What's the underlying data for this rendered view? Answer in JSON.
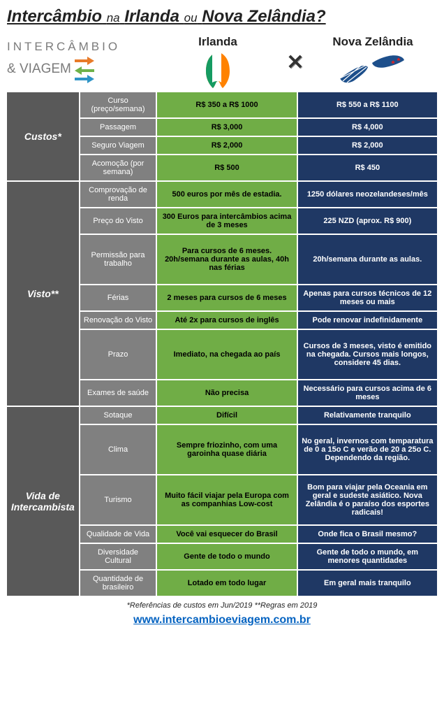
{
  "colors": {
    "category": "#595959",
    "subcat": "#808080",
    "ireland": "#70ad46",
    "newzealand": "#1f3864",
    "border": "#ffffff",
    "link": "#0563c1"
  },
  "title": {
    "pre": "Intercâmbio",
    "mid": "na",
    "c1": "Irlanda",
    "or": "ou",
    "c2": "Nova Zelândia?"
  },
  "logo": {
    "top": "INTERCÂMBIO",
    "bot": "& VIAGEM"
  },
  "colhead": {
    "ie": "Irlanda",
    "nz": "Nova Zelândia"
  },
  "vs": "✕",
  "sections": [
    {
      "cat": "Custos*",
      "rows": [
        {
          "sub": "Curso (preço/semana)",
          "ie": "R$ 350 a R$ 1000",
          "nz": "R$ 550 a R$ 1100"
        },
        {
          "sub": "Passagem",
          "ie": "R$ 3,000",
          "nz": "R$ 4,000"
        },
        {
          "sub": "Seguro Viagem",
          "ie": "R$ 2,000",
          "nz": "R$ 2,000"
        },
        {
          "sub": "Acomoção (por semana)",
          "ie": "R$ 500",
          "nz": "R$ 450"
        }
      ]
    },
    {
      "cat": "Visto**",
      "rows": [
        {
          "sub": "Comprovação de renda",
          "ie": "500 euros por mês de estadia.",
          "nz": "1250 dólares neozelandeses/mês"
        },
        {
          "sub": "Preço do Visto",
          "ie": "300 Euros para intercâmbios acima de 3 meses",
          "nz": "225 NZD (aprox. R$ 900)"
        },
        {
          "sub": "Permissão para trabalho",
          "ie": "Para cursos de 6 meses. 20h/semana durante as aulas, 40h nas férias",
          "nz": "20h/semana durante as aulas.",
          "h": "taller"
        },
        {
          "sub": "Férias",
          "ie": "2 meses para cursos de 6 meses",
          "nz": "Apenas para cursos técnicos de 12 meses ou mais"
        },
        {
          "sub": "Renovação do Visto",
          "ie": "Até 2x para cursos de inglês",
          "nz": "Pode renovar indefinidamente"
        },
        {
          "sub": "Prazo",
          "ie": "Imediato, na chegada ao país",
          "nz": "Cursos de 3 meses, visto é emitido na chegada. Cursos mais longos, considere 45 dias.",
          "h": "taller"
        },
        {
          "sub": "Exames de saúde",
          "ie": "Não precisa",
          "nz": "Necessário para cursos acima de 6 meses"
        }
      ]
    },
    {
      "cat": "Vida de Intercambista",
      "rows": [
        {
          "sub": "Sotaque",
          "ie": "Difícil",
          "nz": "Relativamente tranquilo"
        },
        {
          "sub": "Clima",
          "ie": "Sempre friozinho, com uma garoinha quase diária",
          "nz": "No geral, invernos com temparatura de 0 a 15o C e verão de 20 a 25o C. Dependendo da região.",
          "h": "taller"
        },
        {
          "sub": "Turismo",
          "ie": "Muito fácil viajar pela Europa com as companhias Low-cost",
          "nz": "Bom para viajar pela Oceania em geral e sudeste asiático. Nova Zelândia é o paraíso dos esportes radicais!",
          "h": "taller"
        },
        {
          "sub": "Qualidade de Vida",
          "ie": "Você vai esquecer do Brasil",
          "nz": "Onde fica o Brasil mesmo?"
        },
        {
          "sub": "Diversidade Cultural",
          "ie": "Gente de todo o mundo",
          "nz": "Gente de todo o mundo, em menores quantidades"
        },
        {
          "sub": "Quantidade de brasileiro",
          "ie": "Lotado em todo lugar",
          "nz": "Em geral mais tranquilo"
        }
      ]
    }
  ],
  "footnote": "*Referências de custos em Jun/2019    **Regras em 2019",
  "link": "www.intercambioeviagem.com.br"
}
